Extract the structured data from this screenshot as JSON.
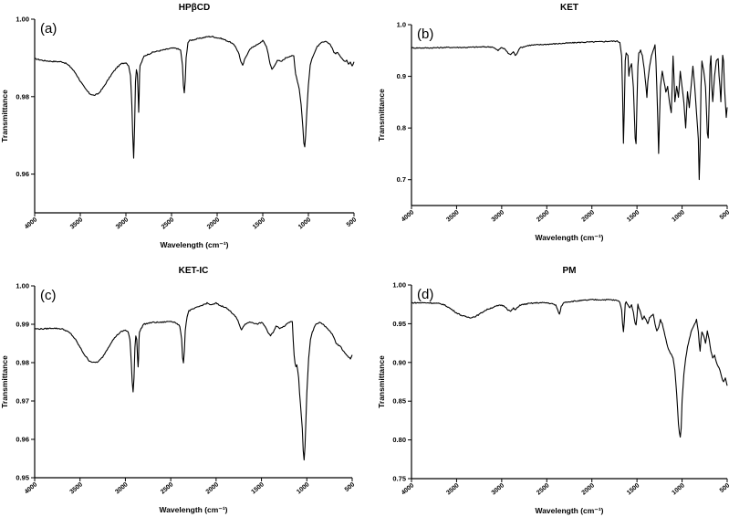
{
  "chart_data": [
    {
      "type": "line",
      "panel_label": "(a)",
      "title": "HPβCD",
      "xlabel": "Wavelength  (cm⁻¹)",
      "ylabel": "Transmittance",
      "xlim": [
        4000,
        500
      ],
      "ylim": [
        0.95,
        1.0
      ],
      "x_ticks": [
        4000,
        3500,
        3000,
        2500,
        2000,
        1500,
        1000,
        500
      ],
      "y_ticks": [
        0.96,
        0.98,
        1.0
      ],
      "y_decimals": 2,
      "grid": false,
      "series": [
        {
          "x": [
            4000,
            3900,
            3800,
            3700,
            3650,
            3600,
            3550,
            3500,
            3450,
            3400,
            3350,
            3300,
            3250,
            3200,
            3150,
            3100,
            3050,
            3000,
            2970,
            2950,
            2935,
            2925,
            2915,
            2905,
            2895,
            2885,
            2875,
            2865,
            2860,
            2855,
            2850,
            2845,
            2835,
            2800,
            2700,
            2600,
            2500,
            2450,
            2400,
            2380,
            2370,
            2360,
            2350,
            2340,
            2320,
            2300,
            2200,
            2100,
            2050,
            2000,
            1950,
            1900,
            1850,
            1800,
            1760,
            1740,
            1720,
            1700,
            1650,
            1600,
            1550,
            1500,
            1460,
            1440,
            1420,
            1400,
            1370,
            1340,
            1300,
            1250,
            1200,
            1160,
            1150,
            1140,
            1120,
            1100,
            1080,
            1060,
            1050,
            1040,
            1030,
            1020,
            1000,
            980,
            960,
            940,
            920,
            900,
            850,
            800,
            760,
            740,
            720,
            700,
            680,
            650,
            620,
            600,
            580,
            560,
            540,
            520,
            500
          ],
          "y": [
            0.9898,
            0.9893,
            0.9891,
            0.989,
            0.9885,
            0.9875,
            0.986,
            0.984,
            0.9822,
            0.9808,
            0.9803,
            0.9808,
            0.9823,
            0.9842,
            0.986,
            0.9875,
            0.9885,
            0.9888,
            0.988,
            0.9855,
            0.978,
            0.97,
            0.964,
            0.972,
            0.984,
            0.987,
            0.986,
            0.98,
            0.976,
            0.98,
            0.986,
            0.988,
            0.9885,
            0.9905,
            0.9915,
            0.992,
            0.9925,
            0.9925,
            0.992,
            0.988,
            0.983,
            0.981,
            0.984,
            0.99,
            0.994,
            0.9945,
            0.995,
            0.9955,
            0.9955,
            0.9952,
            0.995,
            0.9945,
            0.994,
            0.993,
            0.991,
            0.989,
            0.988,
            0.9895,
            0.992,
            0.993,
            0.9935,
            0.9945,
            0.993,
            0.991,
            0.9885,
            0.987,
            0.988,
            0.9895,
            0.989,
            0.99,
            0.9905,
            0.9905,
            0.988,
            0.986,
            0.984,
            0.982,
            0.978,
            0.972,
            0.968,
            0.967,
            0.97,
            0.975,
            0.983,
            0.988,
            0.99,
            0.991,
            0.992,
            0.993,
            0.994,
            0.9942,
            0.9935,
            0.9925,
            0.9915,
            0.991,
            0.9915,
            0.9905,
            0.9895,
            0.989,
            0.9895,
            0.9885,
            0.989,
            0.988,
            0.989
          ]
        }
      ]
    },
    {
      "type": "line",
      "panel_label": "(b)",
      "title": "KET",
      "xlabel": "Wavelength  (cm⁻¹)",
      "ylabel": "Transmittance",
      "xlim": [
        4000,
        500
      ],
      "ylim": [
        0.65,
        1.0
      ],
      "x_ticks": [
        4000,
        3500,
        3000,
        2500,
        2000,
        1500,
        1000,
        500
      ],
      "y_ticks": [
        0.7,
        0.8,
        0.9,
        1.0
      ],
      "y_decimals": 1,
      "grid": false,
      "series": [
        {
          "x": [
            4000,
            3800,
            3600,
            3400,
            3200,
            3100,
            3060,
            3040,
            3020,
            3000,
            2960,
            2930,
            2900,
            2870,
            2850,
            2830,
            2800,
            2700,
            2500,
            2300,
            2100,
            1900,
            1800,
            1720,
            1690,
            1670,
            1660,
            1650,
            1640,
            1630,
            1620,
            1600,
            1590,
            1580,
            1560,
            1540,
            1520,
            1510,
            1500,
            1490,
            1480,
            1460,
            1440,
            1420,
            1400,
            1390,
            1380,
            1360,
            1340,
            1320,
            1300,
            1290,
            1280,
            1270,
            1260,
            1250,
            1240,
            1220,
            1200,
            1180,
            1160,
            1140,
            1120,
            1110,
            1100,
            1090,
            1080,
            1060,
            1040,
            1020,
            1000,
            980,
            960,
            940,
            920,
            900,
            880,
            860,
            840,
            820,
            810,
            800,
            790,
            780,
            760,
            740,
            720,
            710,
            700,
            690,
            680,
            670,
            660,
            640,
            620,
            600,
            590,
            580,
            570,
            560,
            550,
            540,
            530,
            520,
            510,
            500
          ],
          "y": [
            0.955,
            0.955,
            0.956,
            0.956,
            0.957,
            0.957,
            0.952,
            0.95,
            0.953,
            0.956,
            0.952,
            0.945,
            0.942,
            0.948,
            0.94,
            0.945,
            0.955,
            0.96,
            0.962,
            0.964,
            0.966,
            0.967,
            0.968,
            0.968,
            0.966,
            0.94,
            0.87,
            0.77,
            0.84,
            0.93,
            0.945,
            0.94,
            0.9,
            0.915,
            0.925,
            0.88,
            0.78,
            0.77,
            0.85,
            0.92,
            0.945,
            0.95,
            0.94,
            0.915,
            0.88,
            0.86,
            0.89,
            0.92,
            0.94,
            0.95,
            0.96,
            0.93,
            0.88,
            0.82,
            0.75,
            0.82,
            0.88,
            0.91,
            0.89,
            0.87,
            0.88,
            0.85,
            0.83,
            0.88,
            0.94,
            0.9,
            0.85,
            0.88,
            0.86,
            0.91,
            0.88,
            0.85,
            0.8,
            0.87,
            0.84,
            0.88,
            0.92,
            0.88,
            0.83,
            0.78,
            0.7,
            0.76,
            0.88,
            0.93,
            0.91,
            0.88,
            0.79,
            0.78,
            0.85,
            0.92,
            0.94,
            0.88,
            0.85,
            0.9,
            0.93,
            0.935,
            0.9,
            0.88,
            0.85,
            0.9,
            0.94,
            0.93,
            0.88,
            0.85,
            0.82,
            0.84
          ]
        }
      ]
    },
    {
      "type": "line",
      "panel_label": "(c)",
      "title": "KET-IC",
      "xlabel": "Wavelength  (cm⁻¹)",
      "ylabel": "Transmittance",
      "xlim": [
        4000,
        500
      ],
      "ylim": [
        0.95,
        1.0
      ],
      "x_ticks": [
        4000,
        3500,
        3000,
        2500,
        2000,
        1500,
        1000,
        500
      ],
      "y_ticks": [
        0.95,
        0.96,
        0.97,
        0.98,
        0.99,
        1.0
      ],
      "y_decimals": 2,
      "grid": false,
      "series": [
        {
          "x": [
            4000,
            3900,
            3800,
            3700,
            3650,
            3600,
            3550,
            3500,
            3450,
            3400,
            3350,
            3300,
            3250,
            3200,
            3150,
            3100,
            3050,
            3000,
            2970,
            2950,
            2935,
            2925,
            2915,
            2905,
            2895,
            2885,
            2875,
            2865,
            2860,
            2855,
            2850,
            2845,
            2835,
            2800,
            2700,
            2600,
            2500,
            2450,
            2400,
            2380,
            2370,
            2360,
            2350,
            2340,
            2320,
            2300,
            2200,
            2100,
            2050,
            2000,
            1950,
            1900,
            1850,
            1800,
            1760,
            1740,
            1720,
            1700,
            1650,
            1600,
            1550,
            1500,
            1460,
            1440,
            1420,
            1400,
            1370,
            1340,
            1300,
            1250,
            1200,
            1160,
            1150,
            1140,
            1130,
            1120,
            1110,
            1100,
            1090,
            1080,
            1070,
            1060,
            1050,
            1040,
            1030,
            1020,
            1010,
            1000,
            980,
            960,
            940,
            920,
            900,
            850,
            800,
            760,
            740,
            720,
            700,
            680,
            650,
            620,
            600,
            580,
            560,
            540,
            520,
            500
          ],
          "y": [
            0.9888,
            0.9888,
            0.989,
            0.9888,
            0.9883,
            0.9875,
            0.986,
            0.984,
            0.982,
            0.9805,
            0.98,
            0.9802,
            0.9815,
            0.9835,
            0.9855,
            0.987,
            0.988,
            0.9885,
            0.988,
            0.986,
            0.98,
            0.975,
            0.9725,
            0.976,
            0.984,
            0.987,
            0.986,
            0.981,
            0.979,
            0.981,
            0.986,
            0.9878,
            0.9885,
            0.99,
            0.9905,
            0.9905,
            0.9908,
            0.9905,
            0.9895,
            0.986,
            0.9815,
            0.98,
            0.983,
            0.9885,
            0.992,
            0.9935,
            0.9945,
            0.9955,
            0.995,
            0.9955,
            0.9948,
            0.9945,
            0.9935,
            0.9925,
            0.991,
            0.9895,
            0.9885,
            0.9895,
            0.9905,
            0.9905,
            0.99,
            0.9905,
            0.9895,
            0.9885,
            0.9875,
            0.987,
            0.988,
            0.9895,
            0.989,
            0.9895,
            0.9905,
            0.9908,
            0.986,
            0.982,
            0.98,
            0.979,
            0.9795,
            0.978,
            0.976,
            0.972,
            0.969,
            0.966,
            0.963,
            0.957,
            0.9545,
            0.958,
            0.965,
            0.972,
            0.981,
            0.986,
            0.988,
            0.989,
            0.99,
            0.9905,
            0.9895,
            0.9885,
            0.988,
            0.9875,
            0.9865,
            0.985,
            0.9845,
            0.984,
            0.983,
            0.9825,
            0.982,
            0.9815,
            0.981,
            0.982
          ]
        }
      ]
    },
    {
      "type": "line",
      "panel_label": "(d)",
      "title": "PM",
      "xlabel": "Wavelength  (cm⁻¹)",
      "ylabel": "Transmittance",
      "xlim": [
        4000,
        500
      ],
      "ylim": [
        0.75,
        1.0
      ],
      "x_ticks": [
        4000,
        3500,
        3000,
        2500,
        2000,
        1500,
        1000,
        500
      ],
      "y_ticks": [
        0.75,
        0.8,
        0.85,
        0.9,
        0.95,
        1.0
      ],
      "y_decimals": 2,
      "grid": false,
      "series": [
        {
          "x": [
            4000,
            3900,
            3800,
            3700,
            3650,
            3600,
            3550,
            3500,
            3450,
            3400,
            3350,
            3300,
            3250,
            3200,
            3150,
            3100,
            3050,
            3000,
            2960,
            2930,
            2900,
            2870,
            2850,
            2830,
            2800,
            2700,
            2600,
            2500,
            2450,
            2400,
            2380,
            2370,
            2360,
            2350,
            2340,
            2320,
            2300,
            2200,
            2100,
            2000,
            1900,
            1800,
            1720,
            1690,
            1670,
            1660,
            1650,
            1640,
            1630,
            1620,
            1600,
            1580,
            1560,
            1540,
            1520,
            1510,
            1500,
            1490,
            1480,
            1460,
            1440,
            1420,
            1400,
            1380,
            1360,
            1340,
            1320,
            1300,
            1280,
            1260,
            1240,
            1220,
            1200,
            1180,
            1160,
            1140,
            1120,
            1100,
            1080,
            1060,
            1050,
            1040,
            1030,
            1020,
            1010,
            1000,
            980,
            960,
            940,
            920,
            900,
            880,
            860,
            840,
            820,
            810,
            800,
            790,
            780,
            760,
            740,
            720,
            700,
            680,
            660,
            640,
            620,
            600,
            580,
            560,
            540,
            520,
            500
          ],
          "y": [
            0.977,
            0.977,
            0.977,
            0.976,
            0.975,
            0.972,
            0.968,
            0.964,
            0.961,
            0.959,
            0.958,
            0.959,
            0.962,
            0.966,
            0.969,
            0.971,
            0.973,
            0.974,
            0.972,
            0.968,
            0.966,
            0.97,
            0.968,
            0.97,
            0.974,
            0.976,
            0.977,
            0.977,
            0.976,
            0.974,
            0.968,
            0.964,
            0.963,
            0.966,
            0.972,
            0.976,
            0.978,
            0.979,
            0.98,
            0.981,
            0.981,
            0.981,
            0.98,
            0.978,
            0.968,
            0.95,
            0.94,
            0.955,
            0.975,
            0.978,
            0.975,
            0.97,
            0.975,
            0.965,
            0.95,
            0.948,
            0.96,
            0.975,
            0.97,
            0.965,
            0.955,
            0.96,
            0.955,
            0.95,
            0.958,
            0.96,
            0.962,
            0.95,
            0.94,
            0.945,
            0.955,
            0.95,
            0.94,
            0.93,
            0.92,
            0.915,
            0.91,
            0.905,
            0.89,
            0.86,
            0.84,
            0.82,
            0.81,
            0.803,
            0.815,
            0.85,
            0.885,
            0.905,
            0.92,
            0.93,
            0.94,
            0.945,
            0.95,
            0.955,
            0.94,
            0.925,
            0.915,
            0.93,
            0.94,
            0.935,
            0.925,
            0.94,
            0.93,
            0.915,
            0.905,
            0.91,
            0.9,
            0.895,
            0.89,
            0.88,
            0.875,
            0.88,
            0.87
          ]
        }
      ]
    }
  ]
}
